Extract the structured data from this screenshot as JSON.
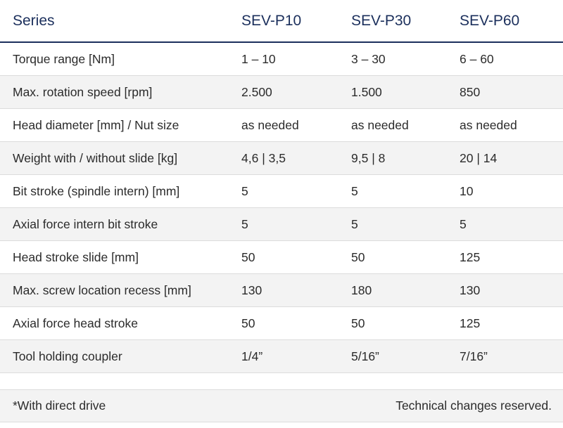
{
  "header": {
    "series_label": "Series",
    "models": [
      "SEV-P10",
      "SEV-P30",
      "SEV-P60"
    ]
  },
  "rows": [
    {
      "label": "Torque range [Nm]",
      "values": [
        "1 – 10",
        "3 – 30",
        "6 – 60"
      ]
    },
    {
      "label": "Max. rotation speed [rpm]",
      "values": [
        "2.500",
        "1.500",
        "850"
      ]
    },
    {
      "label": "Head diameter [mm] / Nut size",
      "values": [
        "as needed",
        "as needed",
        "as needed"
      ]
    },
    {
      "label": "Weight with / without slide [kg]",
      "values": [
        "4,6 | 3,5",
        "9,5 | 8",
        "20 | 14"
      ]
    },
    {
      "label": "Bit stroke (spindle intern) [mm]",
      "values": [
        "5",
        "5",
        "10"
      ]
    },
    {
      "label": "Axial force intern bit stroke",
      "values": [
        "5",
        "5",
        "5"
      ]
    },
    {
      "label": "Head stroke slide [mm]",
      "values": [
        "50",
        "50",
        "125"
      ]
    },
    {
      "label": "Max. screw location recess [mm]",
      "values": [
        "130",
        "180",
        "130"
      ]
    },
    {
      "label": "Axial force head stroke",
      "values": [
        "50",
        "50",
        "125"
      ]
    },
    {
      "label": "Tool holding coupler",
      "values": [
        "1/4”",
        "5/16”",
        "7/16”"
      ]
    }
  ],
  "footer": {
    "left_note": "*With direct drive",
    "right_note": "Technical changes reserved."
  },
  "colors": {
    "header_text": "#1b2f5c",
    "stripe": "#f3f3f3",
    "body_text": "#2b2b2b"
  }
}
